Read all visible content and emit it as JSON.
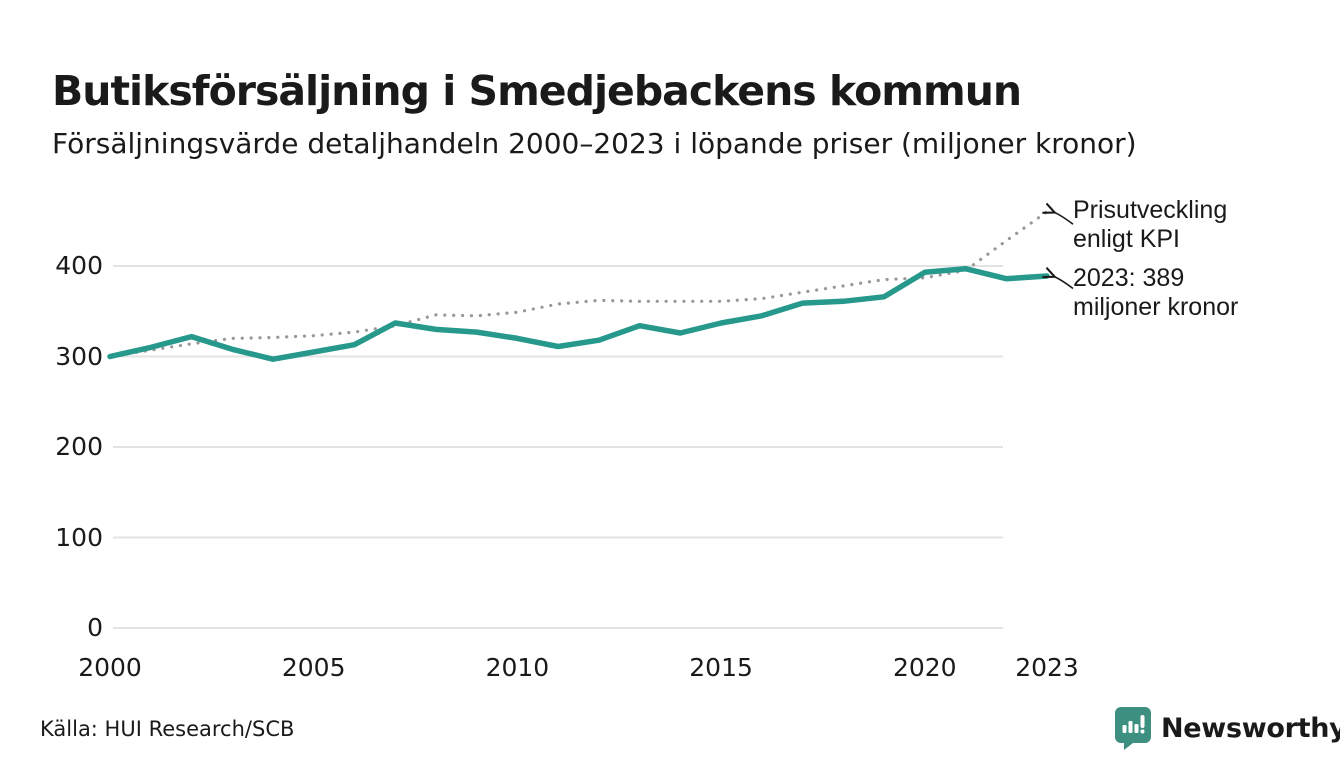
{
  "title": "Butiksförsäljning i Smedjebackens kommun",
  "subtitle": "Försäljningsvärde detaljhandeln 2000–2023 i löpande priser (miljoner kronor)",
  "annotations": {
    "kpi": {
      "line1": "Prisutveckling",
      "line2": "enligt KPI"
    },
    "latest": {
      "line1": "2023: 389",
      "line2": "miljoner kronor"
    }
  },
  "source": {
    "text": "Källa: HUI Research/SCB"
  },
  "brand": {
    "name": "Newsworthy",
    "icon": "bar-chart-speech-bubble",
    "color": "#2f9183",
    "icon_color": "#3d8f80"
  },
  "colors": {
    "sales_line": "#27998c",
    "kpi_dots": "#999999",
    "gridline": "#e3e3e3",
    "text": "#1a1a1a",
    "arrow": "#1a1a1a"
  },
  "chart_data": {
    "type": "line",
    "title": "Butiksförsäljning i Smedjebackens kommun",
    "subtitle": "Försäljningsvärde detaljhandeln 2000–2023 i löpande priser (miljoner kronor)",
    "xlabel": "",
    "ylabel": "miljoner kronor",
    "grid": "horizontal",
    "legend": "inline-annotations",
    "ylim": [
      0,
      470
    ],
    "yticks": [
      0,
      100,
      200,
      300,
      400
    ],
    "xticks": [
      2000,
      2005,
      2010,
      2015,
      2020,
      2023
    ],
    "x": [
      2000,
      2001,
      2002,
      2003,
      2004,
      2005,
      2006,
      2007,
      2008,
      2009,
      2010,
      2011,
      2012,
      2013,
      2014,
      2015,
      2016,
      2017,
      2018,
      2019,
      2020,
      2021,
      2022,
      2023
    ],
    "series": [
      {
        "name": "Butiksförsäljning, löpande priser (miljoner kronor)",
        "style": "solid",
        "color": "#27998c",
        "values": [
          300,
          310,
          322,
          308,
          297,
          305,
          313,
          337,
          330,
          327,
          320,
          311,
          318,
          334,
          326,
          337,
          345,
          359,
          361,
          366,
          393,
          397,
          386,
          389
        ]
      },
      {
        "name": "Prisutveckling enligt KPI",
        "style": "dotted",
        "color": "#999999",
        "values": [
          300,
          307,
          314,
          320,
          321,
          323,
          327,
          334,
          346,
          345,
          349,
          358,
          362,
          361,
          361,
          361,
          364,
          371,
          378,
          385,
          387,
          395,
          428,
          460
        ]
      }
    ],
    "annotations": [
      {
        "target_series": "Prisutveckling enligt KPI",
        "target_x": 2023,
        "text": "Prisutveckling enligt KPI"
      },
      {
        "target_series": "Butiksförsäljning, löpande priser (miljoner kronor)",
        "target_x": 2023,
        "text": "2023: 389 miljoner kronor"
      }
    ]
  }
}
